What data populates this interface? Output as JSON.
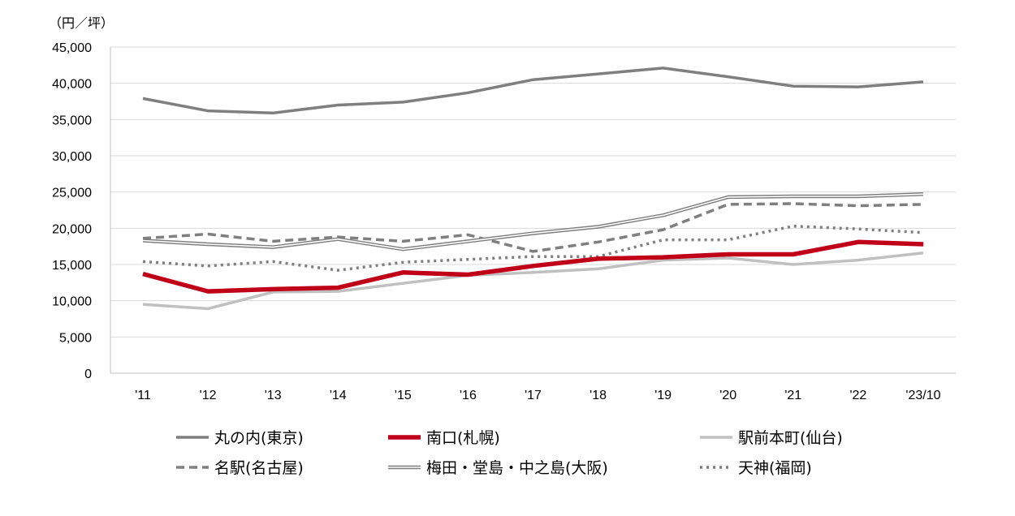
{
  "chart_data": {
    "type": "line",
    "unit_label": "（円／坪）",
    "categories": [
      "'11",
      "'12",
      "'13",
      "'14",
      "'15",
      "'16",
      "'17",
      "'18",
      "'19",
      "'20",
      "'21",
      "'22",
      "'23/10"
    ],
    "y_ticks": [
      "0",
      "5,000",
      "10,000",
      "15,000",
      "20,000",
      "25,000",
      "30,000",
      "35,000",
      "40,000",
      "45,000"
    ],
    "ylim": [
      0,
      45000
    ],
    "grid": true,
    "legend_position": "bottom",
    "series": [
      {
        "name": "丸の内(東京)",
        "color": "#7f7f7f",
        "style": "solid-thick",
        "values": [
          37900,
          36200,
          35900,
          37000,
          37400,
          38700,
          40500,
          41300,
          42100,
          40900,
          39600,
          39500,
          40200
        ]
      },
      {
        "name": "南口(札幌)",
        "color": "#c00018",
        "style": "solid-heavy",
        "values": [
          13700,
          11300,
          11600,
          11800,
          13900,
          13600,
          14800,
          15800,
          16000,
          16400,
          16400,
          18100,
          17800
        ]
      },
      {
        "name": "駅前本町(仙台)",
        "color": "#c0c0c0",
        "style": "solid-light",
        "values": [
          9500,
          8900,
          11200,
          11300,
          12400,
          13500,
          13900,
          14400,
          15600,
          15900,
          15000,
          15600,
          16600
        ]
      },
      {
        "name": "名駅(名古屋)",
        "color": "#7f7f7f",
        "style": "dashed",
        "values": [
          18600,
          19200,
          18200,
          18800,
          18200,
          19100,
          16800,
          18100,
          19800,
          23300,
          23400,
          23100,
          23300
        ]
      },
      {
        "name": "梅田・堂島・中之島(大阪)",
        "color": "#7f7f7f",
        "style": "double",
        "values": [
          18300,
          17800,
          17400,
          18500,
          17100,
          18200,
          19300,
          20200,
          21800,
          24300,
          24400,
          24400,
          24700
        ]
      },
      {
        "name": "天神(福岡)",
        "color": "#7f7f7f",
        "style": "dotted",
        "values": [
          15400,
          14800,
          15400,
          14200,
          15300,
          15700,
          16100,
          16100,
          18400,
          18400,
          20300,
          19900,
          19400
        ]
      }
    ]
  }
}
